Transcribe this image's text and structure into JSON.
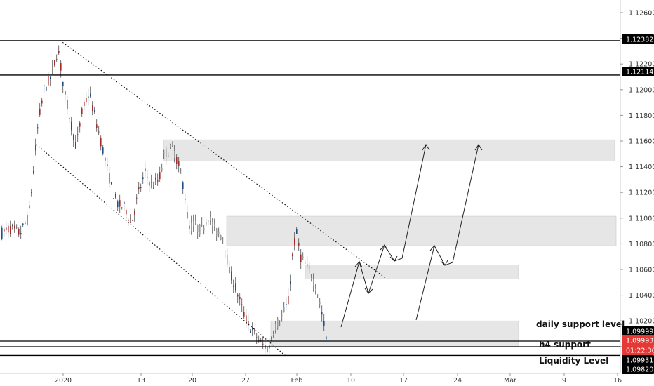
{
  "chart_data": {
    "type": "candlestick",
    "title": "",
    "xlabel": "",
    "ylabel": "",
    "ylim": [
      1.0982,
      1.1275
    ],
    "y_ticks": [
      "1.12600",
      "1.12400",
      "1.12200",
      "1.12000",
      "1.11800",
      "1.11600",
      "1.11400",
      "1.11200",
      "1.11000",
      "1.10800",
      "1.10600",
      "1.10400",
      "1.10200",
      "1.10000"
    ],
    "x_ticks": [
      "2020",
      "13",
      "20",
      "27",
      "Feb",
      "10",
      "17",
      "24",
      "Mar",
      "9",
      "16"
    ],
    "horizontal_levels": [
      {
        "value": 1.12382,
        "label": "1.12382"
      },
      {
        "value": 1.12114,
        "label": "1.12114"
      },
      {
        "value": 1.09999,
        "label": "1.09999"
      },
      {
        "value": 1.09931,
        "label": "1.09931"
      },
      {
        "value": 1.0982,
        "label": "1.09820"
      }
    ],
    "current_price": {
      "value": 1.09993,
      "label": "1.09993",
      "countdown": "01:22:30",
      "color": "#e53935"
    },
    "zones": [
      {
        "y_top": 1.1161,
        "y_bottom": 1.11445
      },
      {
        "y_top": 1.11015,
        "y_bottom": 1.10785
      },
      {
        "y_top": 1.10635,
        "y_bottom": 1.10525
      },
      {
        "y_top": 1.102,
        "y_bottom": 1.09995
      }
    ],
    "annotations": [
      "daily support level",
      "h4 support",
      "Liquidity Level"
    ],
    "colors": {
      "up": "#1e4f8c",
      "down": "#a52a2a",
      "neutral": "#9e9e9e",
      "zone": "#e6e6e6",
      "level": "#000000"
    }
  }
}
